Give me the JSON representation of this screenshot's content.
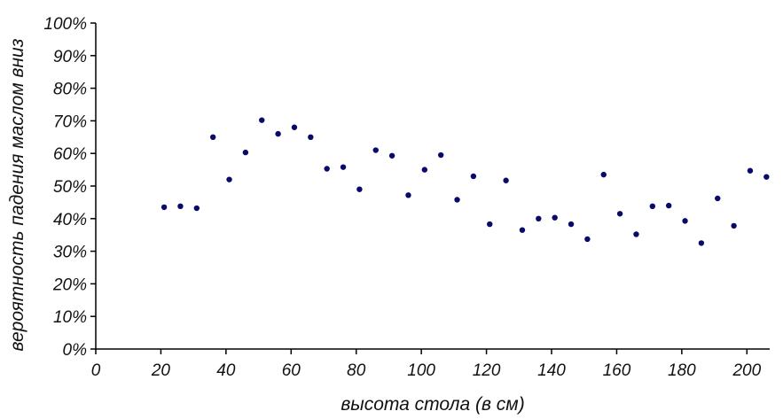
{
  "chart_data": {
    "type": "scatter",
    "title": "",
    "xlabel": "высота стола (в см)",
    "ylabel": "вероятность падения маслом вниз",
    "xlim": [
      0,
      207
    ],
    "ylim": [
      0,
      100
    ],
    "x_ticks": [
      0,
      20,
      40,
      60,
      80,
      100,
      120,
      140,
      160,
      180,
      200
    ],
    "x_tick_labels": [
      "0",
      "20",
      "40",
      "60",
      "80",
      "100",
      "120",
      "140",
      "160",
      "180",
      "200"
    ],
    "y_ticks": [
      0,
      10,
      20,
      30,
      40,
      50,
      60,
      70,
      80,
      90,
      100
    ],
    "y_tick_labels": [
      "0%",
      "10%",
      "20%",
      "30%",
      "40%",
      "50%",
      "60%",
      "70%",
      "80%",
      "90%",
      "100%"
    ],
    "grid": false,
    "marker_color": "#0a0a6b",
    "series": [
      {
        "x": [
          21,
          26,
          31,
          36,
          41,
          46,
          51,
          56,
          61,
          66,
          71,
          76,
          81,
          86,
          91,
          96,
          101,
          106,
          111,
          116,
          121,
          126,
          131,
          136,
          141,
          146,
          151,
          156,
          161,
          166,
          171,
          176,
          181,
          186,
          191,
          196,
          201,
          206
        ],
        "y": [
          43.5,
          43.8,
          43.2,
          65,
          52,
          60.3,
          70.2,
          66,
          68,
          65,
          55.3,
          55.8,
          49,
          61,
          59.3,
          47.2,
          55,
          59.5,
          45.8,
          53,
          38.3,
          51.7,
          36.5,
          40,
          40.3,
          38.3,
          33.7,
          53.5,
          41.5,
          35.2,
          43.8,
          44,
          39.3,
          32.5,
          46.2,
          37.8,
          54.7,
          52.8
        ]
      }
    ]
  }
}
